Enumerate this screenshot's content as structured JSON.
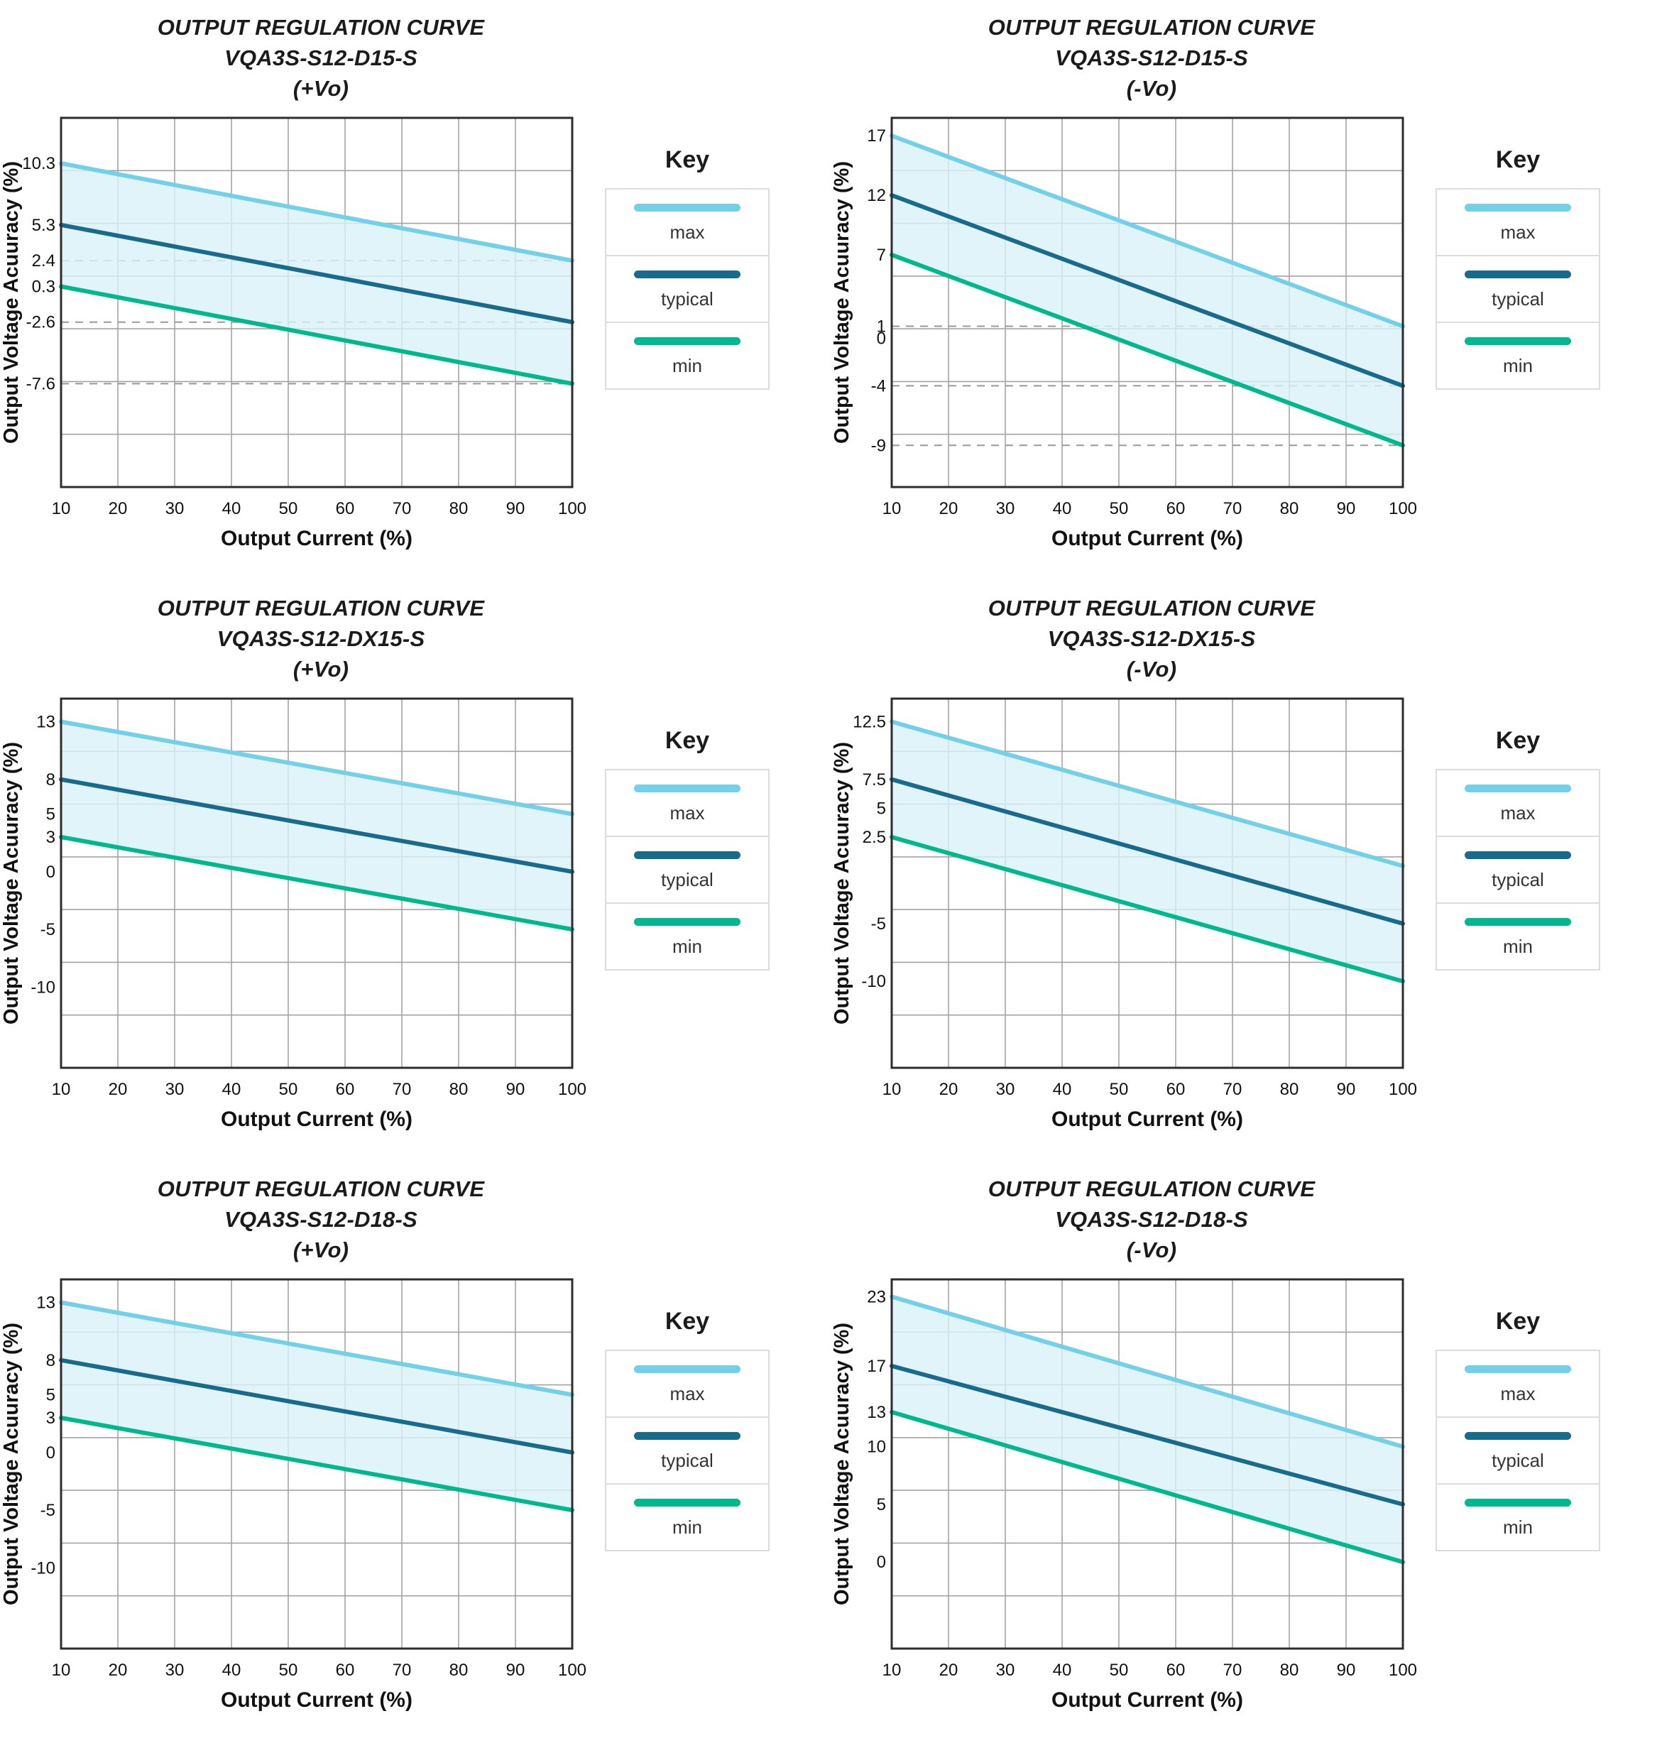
{
  "colors": {
    "max": "#72d0e8",
    "typical": "#186b8c",
    "min": "#00b88d",
    "band": "#d9f1f8",
    "grid": "#a3a3a3",
    "dashed": "#999999",
    "border": "#2d2d2d",
    "tick_text": "#111111",
    "axis_text": "#111111",
    "title_text": "#1b1b1b"
  },
  "legend": {
    "title": "Key",
    "entries": [
      {
        "id": "max",
        "label": "max"
      },
      {
        "id": "typical",
        "label": "typical"
      },
      {
        "id": "min",
        "label": "min"
      }
    ]
  },
  "chart_data": [
    {
      "type": "line",
      "title_lines": [
        "OUTPUT REGULATION CURVE",
        "VQA3S-S12-D15-S",
        "(+Vo)"
      ],
      "xlabel": "Output Current (%)",
      "ylabel": "Output Voltage Acuuracy (%)",
      "x": [
        10,
        100
      ],
      "xlim": [
        10,
        100
      ],
      "ylim": [
        -16,
        14
      ],
      "x_ticks": [
        10,
        20,
        30,
        40,
        50,
        60,
        70,
        80,
        90,
        100
      ],
      "y_ticks": [
        10.3,
        5.3,
        2.4,
        0.3,
        -2.6,
        -7.6
      ],
      "dashed_gridlines_y": [
        2.4,
        -2.6,
        -7.6
      ],
      "series": [
        {
          "name": "max",
          "values": [
            10.3,
            2.4
          ]
        },
        {
          "name": "typical",
          "values": [
            5.3,
            -2.6
          ]
        },
        {
          "name": "min",
          "values": [
            0.3,
            -7.6
          ]
        }
      ],
      "grid": true,
      "legend_position": "right"
    },
    {
      "type": "line",
      "title_lines": [
        "OUTPUT REGULATION CURVE",
        "VQA3S-S12-D15-S",
        "(-Vo)"
      ],
      "xlabel": "Output Current (%)",
      "ylabel": "Output Voltage Acuuracy (%)",
      "x": [
        10,
        100
      ],
      "xlim": [
        10,
        100
      ],
      "ylim": [
        -12.5,
        18.5
      ],
      "x_ticks": [
        10,
        20,
        30,
        40,
        50,
        60,
        70,
        80,
        90,
        100
      ],
      "y_ticks": [
        17,
        12,
        7,
        1,
        0,
        -4,
        -9
      ],
      "dashed_gridlines_y": [
        1,
        -4,
        -9
      ],
      "series": [
        {
          "name": "max",
          "values": [
            17,
            1
          ]
        },
        {
          "name": "typical",
          "values": [
            12,
            -4
          ]
        },
        {
          "name": "min",
          "values": [
            7,
            -9
          ]
        }
      ],
      "grid": true,
      "legend_position": "right"
    },
    {
      "type": "line",
      "title_lines": [
        "OUTPUT REGULATION CURVE",
        "VQA3S-S12-DX15-S",
        "(+Vo)"
      ],
      "xlabel": "Output Current (%)",
      "ylabel": "Output Voltage Acuuracy (%)",
      "x": [
        10,
        100
      ],
      "xlim": [
        10,
        100
      ],
      "ylim": [
        -17,
        15
      ],
      "x_ticks": [
        10,
        20,
        30,
        40,
        50,
        60,
        70,
        80,
        90,
        100
      ],
      "y_ticks": [
        13,
        8,
        5,
        3,
        0,
        -5,
        -10
      ],
      "dashed_gridlines_y": [],
      "series": [
        {
          "name": "max",
          "values": [
            13,
            5
          ]
        },
        {
          "name": "typical",
          "values": [
            8,
            0
          ]
        },
        {
          "name": "min",
          "values": [
            3,
            -5
          ]
        }
      ],
      "grid": true,
      "legend_position": "right"
    },
    {
      "type": "line",
      "title_lines": [
        "OUTPUT REGULATION CURVE",
        "VQA3S-S12-DX15-S",
        "(-Vo)"
      ],
      "xlabel": "Output Current (%)",
      "ylabel": "Output Voltage Acuuracy (%)",
      "x": [
        10,
        100
      ],
      "xlim": [
        10,
        100
      ],
      "ylim": [
        -17.5,
        14.5
      ],
      "x_ticks": [
        10,
        20,
        30,
        40,
        50,
        60,
        70,
        80,
        90,
        100
      ],
      "y_ticks": [
        12.5,
        7.5,
        5,
        2.5,
        -5,
        -10
      ],
      "dashed_gridlines_y": [],
      "series": [
        {
          "name": "max",
          "values": [
            12.5,
            0
          ]
        },
        {
          "name": "typical",
          "values": [
            7.5,
            -5
          ]
        },
        {
          "name": "min",
          "values": [
            2.5,
            -10
          ]
        }
      ],
      "grid": true,
      "legend_position": "right"
    },
    {
      "type": "line",
      "title_lines": [
        "OUTPUT REGULATION CURVE",
        "VQA3S-S12-D18-S",
        "(+Vo)"
      ],
      "xlabel": "Output Current (%)",
      "ylabel": "Output Voltage Acuuracy (%)",
      "x": [
        10,
        100
      ],
      "xlim": [
        10,
        100
      ],
      "ylim": [
        -17,
        15
      ],
      "x_ticks": [
        10,
        20,
        30,
        40,
        50,
        60,
        70,
        80,
        90,
        100
      ],
      "y_ticks": [
        13,
        8,
        5,
        3,
        0,
        -5,
        -10
      ],
      "dashed_gridlines_y": [],
      "series": [
        {
          "name": "max",
          "values": [
            13,
            5
          ]
        },
        {
          "name": "typical",
          "values": [
            8,
            0
          ]
        },
        {
          "name": "min",
          "values": [
            3,
            -5
          ]
        }
      ],
      "grid": true,
      "legend_position": "right"
    },
    {
      "type": "line",
      "title_lines": [
        "OUTPUT REGULATION CURVE",
        "VQA3S-S12-D18-S",
        "(-Vo)"
      ],
      "xlabel": "Output Current (%)",
      "ylabel": "Output Voltage Acuuracy (%)",
      "x": [
        10,
        100
      ],
      "xlim": [
        10,
        100
      ],
      "ylim": [
        -7.5,
        24.5
      ],
      "x_ticks": [
        10,
        20,
        30,
        40,
        50,
        60,
        70,
        80,
        90,
        100
      ],
      "y_ticks": [
        23,
        17,
        13,
        10,
        5,
        0
      ],
      "dashed_gridlines_y": [],
      "series": [
        {
          "name": "max",
          "values": [
            23,
            10
          ]
        },
        {
          "name": "typical",
          "values": [
            17,
            5
          ]
        },
        {
          "name": "min",
          "values": [
            13,
            0
          ]
        }
      ],
      "grid": true,
      "legend_position": "right"
    }
  ]
}
